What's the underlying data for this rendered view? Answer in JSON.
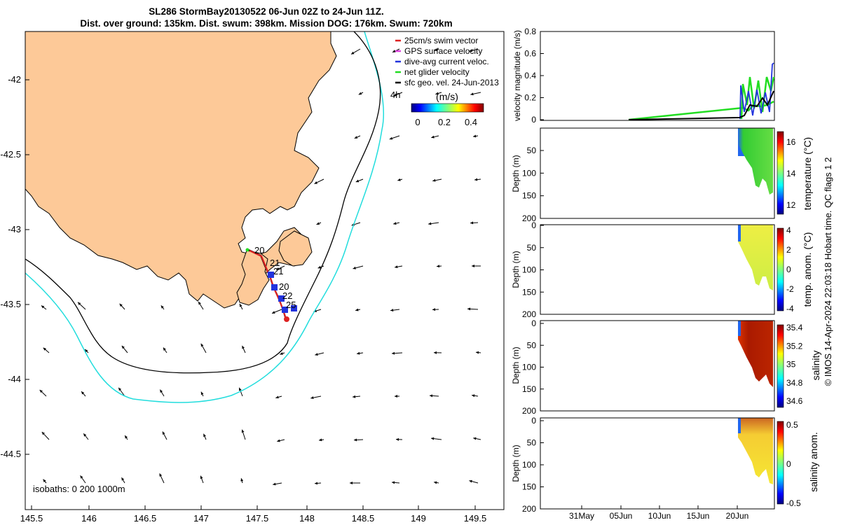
{
  "title": {
    "line1": "SL286 StormBay20130522 06-Jun 02Z to 24-Jun 11Z.",
    "line2": "Dist. over ground: 135km. Dist. swum: 398km. Mission DOG: 176km. Swum: 720km"
  },
  "map": {
    "lon_ticks": [
      "145.5",
      "146",
      "146.5",
      "147",
      "147.5",
      "148",
      "148.5",
      "149",
      "149.5"
    ],
    "lat_ticks": [
      "-42",
      "-42.5",
      "-43",
      "-43.5",
      "-44",
      "-44.5"
    ],
    "xlim": [
      145.43,
      149.77
    ],
    "ylim": [
      -44.86,
      -41.75
    ],
    "land_color": "#fdc998",
    "isobath_colors": [
      "#000000",
      "#22dddd"
    ],
    "isobath_label": "isobaths: 0   200  1000m",
    "four_hour_label": "4h",
    "track_labels": [
      "20",
      "21",
      "21",
      "20",
      "22",
      "25"
    ],
    "legend": [
      {
        "label": "25cm/s swim vector",
        "color": "#dd2222"
      },
      {
        "label": "GPS surface velocity",
        "color": "#dd44dd"
      },
      {
        "label": "dive-avg current veloc.",
        "color": "#2233dd"
      },
      {
        "label": "net glider velocity",
        "color": "#22dd22"
      },
      {
        "label": "sfc geo. vel. 24-Jun-2013",
        "color": "#000000"
      }
    ],
    "colorbar": {
      "title": "(m/s)",
      "ticks": [
        "0",
        "0.2",
        "0.4"
      ]
    }
  },
  "panels": {
    "velocity": {
      "ylabel": "velocity magnitude (m/s)",
      "yticks": [
        "0",
        "0.2",
        "0.4",
        "0.6",
        "0.8"
      ]
    },
    "temperature": {
      "ylabel": "Depth (m)",
      "yticks": [
        "50",
        "100",
        "150",
        "200"
      ],
      "cbar_label": "temperature (°C)",
      "cbar_ticks": [
        "16",
        "14",
        "12"
      ]
    },
    "temp_anom": {
      "ylabel": "Depth (m)",
      "yticks": [
        "0",
        "50",
        "100",
        "150",
        "200"
      ],
      "cbar_label": "temp. anom. (°C)",
      "cbar_ticks": [
        "4",
        "2",
        "0",
        "-2",
        "-4"
      ]
    },
    "salinity": {
      "ylabel": "Depth (m)",
      "yticks": [
        "0",
        "50",
        "100",
        "150",
        "200"
      ],
      "cbar_label": "salinity",
      "cbar_ticks": [
        "35.4",
        "35.2",
        "35",
        "34.8",
        "34.6"
      ]
    },
    "sal_anom": {
      "ylabel": "Depth (m)",
      "yticks": [
        "0",
        "50",
        "100",
        "150",
        "200"
      ],
      "cbar_label": "salinity anom.",
      "cbar_ticks": [
        "0.5",
        "0",
        "-0.5"
      ]
    },
    "time_ticks": [
      "31May",
      "05Jun",
      "10Jun",
      "15Jun",
      "20Jun"
    ]
  },
  "credit": "© IMOS 14-Apr-2024 22:03:18 Hobart time. QC flags 1  2"
}
